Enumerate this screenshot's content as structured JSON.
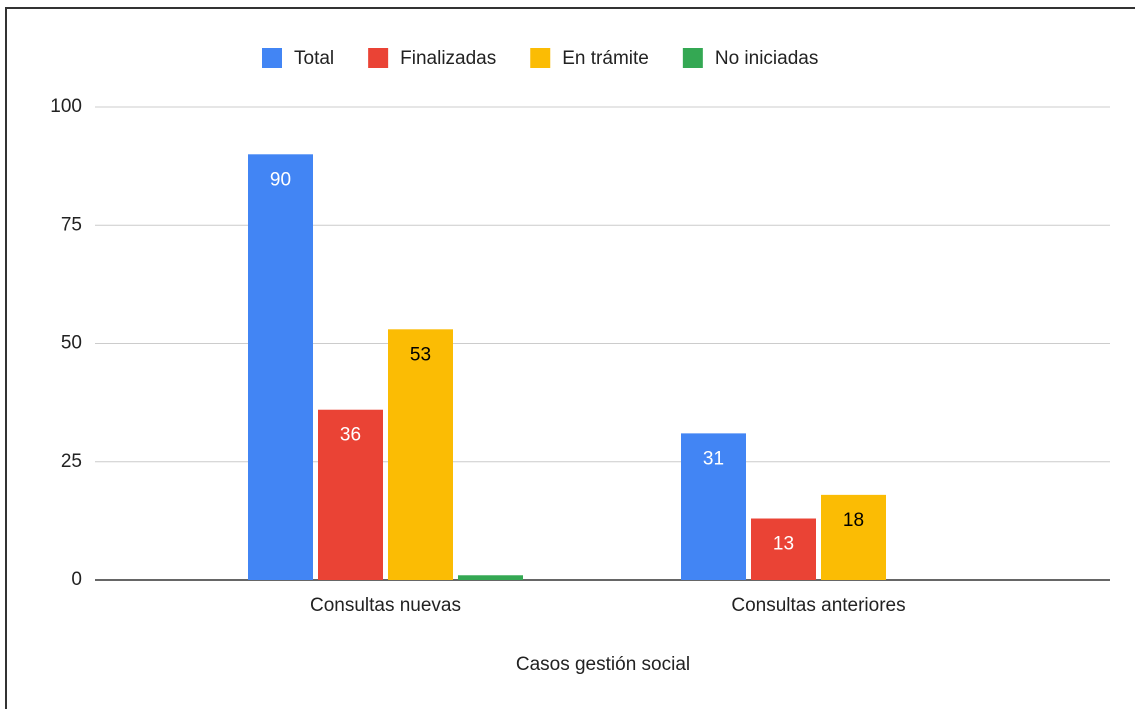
{
  "chart_data": {
    "type": "bar",
    "xlabel": "Casos gestión social",
    "categories": [
      "Consultas nuevas",
      "Consultas anteriores"
    ],
    "series": [
      {
        "name": "Total",
        "color": "#4285f4",
        "label_color": "#ffffff",
        "values": [
          90,
          31
        ]
      },
      {
        "name": "Finalizadas",
        "color": "#ea4335",
        "label_color": "#ffffff",
        "values": [
          36,
          13
        ]
      },
      {
        "name": "En trámite",
        "color": "#fbbc04",
        "label_color": "#000000",
        "values": [
          53,
          18
        ]
      },
      {
        "name": "No iniciadas",
        "color": "#34a853",
        "show_labels": false,
        "values": [
          1,
          0
        ]
      }
    ],
    "ylim": [
      0,
      100
    ],
    "yticks": [
      0,
      25,
      50,
      75,
      100
    ],
    "grid": true,
    "legend": "top"
  }
}
